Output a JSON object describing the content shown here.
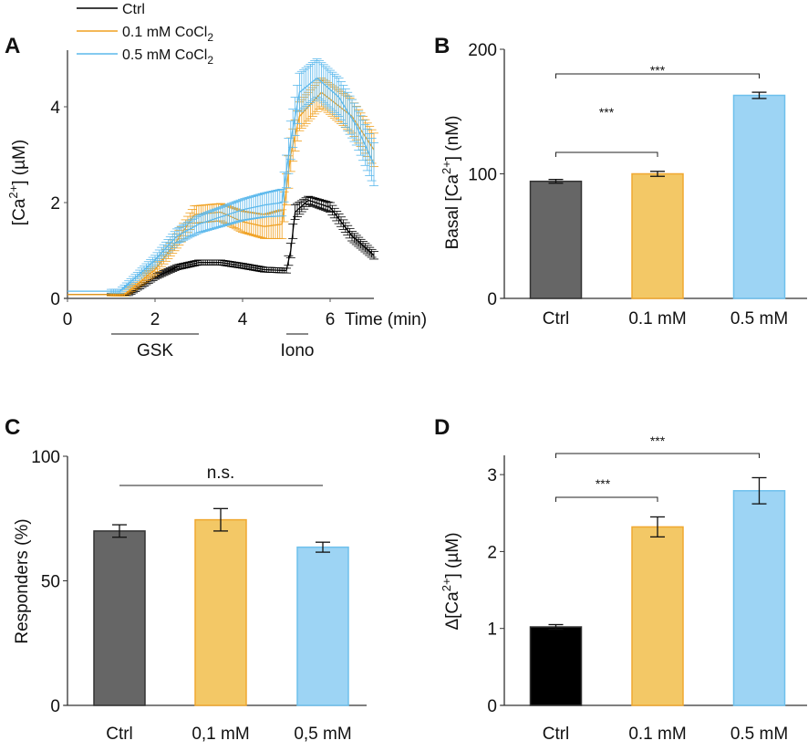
{
  "colors": {
    "ctrl_trace": "#000000",
    "low_trace": "#f0a020",
    "high_trace": "#5bb8ec",
    "ctrl_bar": "#666666",
    "ctrl_bar_d": "#000000",
    "low_bar": "#f3c866",
    "high_bar": "#9dd4f4"
  },
  "chart_data": [
    {
      "panel": "A",
      "type": "line",
      "ylabel": {
        "pre": "[Ca",
        "sup": "2+",
        "post": "] (µM)"
      },
      "xlabel": "Time (min)",
      "xlim": [
        0,
        7
      ],
      "ylim": [
        0,
        5.2
      ],
      "xticks": [
        "0",
        "2",
        "4",
        "6"
      ],
      "yticks": [
        "0",
        "2",
        "4"
      ],
      "annotations": [
        {
          "label": "GSK",
          "from": 1,
          "to": 3
        },
        {
          "label": "Iono",
          "from": 5,
          "to": 5.5
        }
      ],
      "legend": {
        "placement": "top"
      },
      "series": [
        {
          "name": "Ctrl",
          "sub": "",
          "color_key": "ctrl_trace",
          "x": [
            0,
            1.4,
            2,
            2.5,
            3,
            3.5,
            4,
            4.5,
            5,
            5.1,
            5.2,
            5.5,
            6,
            6.5,
            7
          ],
          "y": [
            0.08,
            0.08,
            0.45,
            0.65,
            0.75,
            0.75,
            0.68,
            0.6,
            0.58,
            1.0,
            1.8,
            2.05,
            1.9,
            1.3,
            0.9
          ],
          "sem": [
            0.02,
            0.02,
            0.05,
            0.05,
            0.05,
            0.05,
            0.05,
            0.05,
            0.05,
            0.15,
            0.15,
            0.08,
            0.1,
            0.1,
            0.08
          ]
        },
        {
          "name": "0.1 mM CoCl",
          "sub": "2",
          "color_key": "low_trace",
          "x": [
            0,
            1.3,
            2,
            2.5,
            2.9,
            3.5,
            4,
            4.5,
            4.9,
            5.1,
            5.3,
            5.8,
            6.5,
            7
          ],
          "y": [
            0.08,
            0.08,
            0.6,
            1.2,
            1.75,
            1.8,
            1.6,
            1.5,
            1.55,
            3.0,
            3.8,
            4.3,
            3.8,
            3.1
          ],
          "sem": [
            0.02,
            0.03,
            0.1,
            0.15,
            0.18,
            0.18,
            0.22,
            0.25,
            0.3,
            0.35,
            0.3,
            0.3,
            0.35,
            0.35
          ]
        },
        {
          "name": "0.5 mM CoCl",
          "sub": "2",
          "color_key": "high_trace",
          "x": [
            0,
            1.2,
            2,
            2.5,
            3,
            3.5,
            4,
            4.5,
            4.9,
            5.1,
            5.3,
            5.7,
            6.2,
            6.6,
            7
          ],
          "y": [
            0.15,
            0.15,
            0.8,
            1.3,
            1.55,
            1.7,
            1.85,
            1.95,
            2.0,
            3.3,
            4.3,
            4.6,
            4.2,
            3.6,
            2.8
          ],
          "sem": [
            0.03,
            0.04,
            0.1,
            0.15,
            0.18,
            0.2,
            0.22,
            0.25,
            0.28,
            0.4,
            0.4,
            0.4,
            0.4,
            0.4,
            0.45
          ]
        }
      ]
    },
    {
      "panel": "B",
      "type": "bar",
      "ylabel": {
        "pre": "Basal [Ca",
        "sup": "2+",
        "post": "] (nM)"
      },
      "categories": [
        "Ctrl",
        "0.1 mM",
        "0.5 mM"
      ],
      "values": [
        94,
        100,
        163
      ],
      "errors": [
        1.5,
        2,
        2.5
      ],
      "ylim": [
        0,
        200
      ],
      "yticks": [
        "0",
        "100",
        "200"
      ],
      "significance": [
        {
          "from": 0,
          "to": 1,
          "label": "***"
        },
        {
          "from": 0,
          "to": 2,
          "label": "***"
        }
      ]
    },
    {
      "panel": "C",
      "type": "bar",
      "ylabel": {
        "pre": "Responders (%)",
        "sup": "",
        "post": ""
      },
      "categories": [
        "Ctrl",
        "0,1 mM",
        "0,5 mM"
      ],
      "values": [
        70,
        74.5,
        63.5
      ],
      "errors": [
        2.5,
        4.5,
        2
      ],
      "ylim": [
        0,
        100
      ],
      "yticks": [
        "0",
        "50",
        "100"
      ],
      "significance": [
        {
          "from": 0,
          "to": 2,
          "label": "n.s."
        }
      ]
    },
    {
      "panel": "D",
      "type": "bar",
      "ylabel": {
        "pre": "Δ[Ca",
        "sup": "2+",
        "post": "] (µM)"
      },
      "categories": [
        "Ctrl",
        "0.1 mM",
        "0.5 mM"
      ],
      "values": [
        1.02,
        2.32,
        2.79
      ],
      "errors": [
        0.03,
        0.13,
        0.17
      ],
      "ylim": [
        0,
        3.25
      ],
      "yticks": [
        "0",
        "1",
        "2",
        "3"
      ],
      "significance": [
        {
          "from": 0,
          "to": 1,
          "label": "***"
        },
        {
          "from": 0,
          "to": 2,
          "label": "***"
        }
      ]
    }
  ]
}
